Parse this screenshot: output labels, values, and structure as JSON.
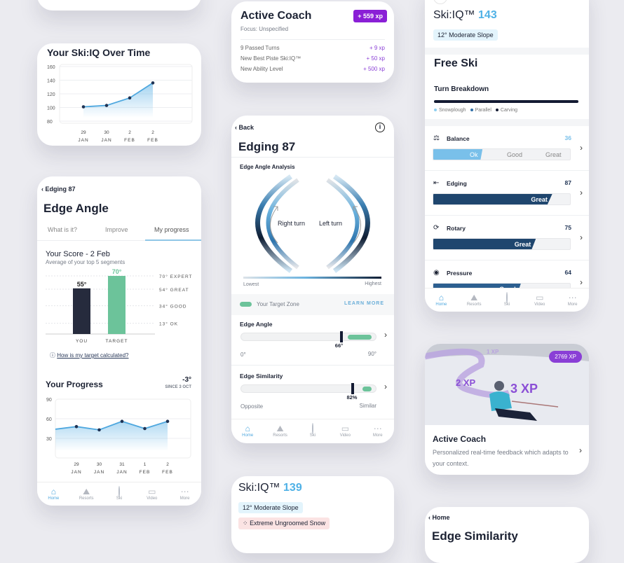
{
  "nav": {
    "items": [
      {
        "label": "Home",
        "icon": "home-icon"
      },
      {
        "label": "Resorts",
        "icon": "mountain-icon"
      },
      {
        "label": "Ski",
        "icon": "ski-record-icon"
      },
      {
        "label": "Video",
        "icon": "video-icon"
      },
      {
        "label": "More",
        "icon": "more-icon"
      }
    ],
    "active": "Home"
  },
  "skiiq_chart": {
    "chart_data": {
      "type": "line",
      "title": "Your Ski:IQ Over Time",
      "categories": [
        "29 JAN",
        "30 JAN",
        "2 FEB",
        "2 FEB"
      ],
      "cat_top": [
        "29",
        "30",
        "2",
        "2"
      ],
      "cat_bottom": [
        "JAN",
        "JAN",
        "FEB",
        "FEB"
      ],
      "values": [
        101,
        103,
        114,
        136
      ],
      "ylim": [
        80,
        160
      ],
      "yticks": [
        160,
        140,
        120,
        100,
        80
      ],
      "grid": true,
      "color": "#4fa8df"
    }
  },
  "edge_angle": {
    "back": "Edging 87",
    "title": "Edge Angle",
    "tabs": [
      "What is it?",
      "Improve",
      "My progress"
    ],
    "active_tab": "My progress",
    "score_title": "Your Score - 2 Feb",
    "score_sub": "Average of your top 5 segments",
    "bar_chart": {
      "type": "bar",
      "categories": [
        "YOU",
        "TARGET"
      ],
      "values": [
        55,
        70
      ],
      "value_labels": [
        "55°",
        "70°"
      ],
      "colors": [
        "#262b3d",
        "#6cc39a"
      ],
      "ylim": [
        0,
        80
      ],
      "levels": [
        {
          "value": 70,
          "label": "70° EXPERT"
        },
        {
          "value": 54,
          "label": "54° GREAT"
        },
        {
          "value": 34,
          "label": "34° GOOD"
        },
        {
          "value": 13,
          "label": "13° OK"
        }
      ]
    },
    "link": "How is my target calculated?",
    "progress_title": "Your Progress",
    "progress_delta": "-3°",
    "progress_since": "SINCE 3 OCT",
    "progress_chart": {
      "type": "area",
      "categories": [
        "",
        "29 JAN",
        "30 JAN",
        "31 JAN",
        "1 FEB",
        "2 FEB"
      ],
      "cat_top": [
        "",
        "29",
        "30",
        "31",
        "1",
        "2"
      ],
      "cat_bottom": [
        "",
        "JAN",
        "JAN",
        "JAN",
        "FEB",
        "FEB"
      ],
      "values": [
        44,
        48,
        43,
        56,
        45,
        56
      ],
      "ylim": [
        0,
        90
      ],
      "yticks": [
        90,
        60,
        30
      ],
      "grid": true
    }
  },
  "coach_xp": {
    "title": "Active Coach",
    "xp": "+ 559 xp",
    "focus": "Focus: Unspecified",
    "rows": [
      {
        "label": "9 Passed Turns",
        "xp": "+ 9 xp"
      },
      {
        "label": "New Best Piste Ski:IQ™",
        "xp": "+ 50 xp"
      },
      {
        "label": "New Ability Level",
        "xp": "+ 500 xp"
      }
    ]
  },
  "edging": {
    "back": "Back",
    "title": "Edging 87",
    "analysis": "Edge Angle Analysis",
    "right_turn": "Right turn",
    "left_turn": "Left turn",
    "lowest": "Lowest",
    "highest": "Highest",
    "target_zone": "Your Target Zone",
    "learn_more": "LEARN MORE",
    "edge_angle": {
      "label": "Edge Angle",
      "value": 66,
      "value_label": "66°",
      "min": "0°",
      "max": "90°",
      "target": [
        69,
        90
      ]
    },
    "edge_similarity": {
      "label": "Edge Similarity",
      "value": 82,
      "value_label": "82%",
      "min": "Opposite",
      "max": "Similar",
      "target": [
        88,
        100
      ]
    }
  },
  "skiiq139": {
    "label": "Ski:IQ™",
    "score": "139",
    "slope": "12° Moderate Slope",
    "snow": "Extreme Ungroomed Snow"
  },
  "free_ski": {
    "iq_label": "Ski:IQ™",
    "iq": "143",
    "slope": "12° Moderate Slope",
    "title": "Free Ski",
    "breakdown": "Turn Breakdown",
    "legend": [
      "Snowplough",
      "Parallel",
      "Carving"
    ],
    "metrics": [
      {
        "name": "Balance",
        "score": "36",
        "level": "Ok",
        "fill": 0.36,
        "segments": [
          "Ok",
          "Good",
          "Great"
        ],
        "icon": "balance-icon"
      },
      {
        "name": "Edging",
        "score": "87",
        "level": "Great",
        "fill": 0.87,
        "icon": "edging-icon"
      },
      {
        "name": "Rotary",
        "score": "75",
        "level": "Great",
        "fill": 0.75,
        "icon": "rotary-icon"
      },
      {
        "name": "Pressure",
        "score": "64",
        "level": "Good",
        "fill": 0.64,
        "icon": "pressure-icon"
      }
    ]
  },
  "coach_card": {
    "xp": "2769 XP",
    "overlay": [
      "1 XP",
      "2 XP",
      "3 XP"
    ],
    "title": "Active Coach",
    "desc": "Personalized real-time feedback which adapts to your context."
  },
  "edge_sim_card": {
    "back": "Home",
    "title": "Edge Similarity"
  }
}
